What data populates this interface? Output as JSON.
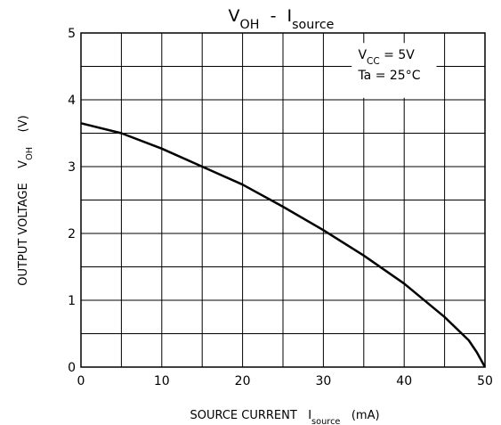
{
  "chart_data": {
    "type": "line",
    "title": [
      {
        "text": "V"
      },
      {
        "text": "OH",
        "sub": true
      },
      {
        "text": "  -  "
      },
      {
        "text": "I"
      },
      {
        "text": "source",
        "sub": true
      }
    ],
    "xlabel": [
      {
        "text": "SOURCE CURRENT   "
      },
      {
        "text": "I"
      },
      {
        "text": "source",
        "sub": true
      },
      {
        "text": "   (mA)"
      }
    ],
    "ylabel": [
      {
        "text": "OUTPUT VOLTAGE    "
      },
      {
        "text": "V"
      },
      {
        "text": "OH",
        "sub": true
      },
      {
        "text": "    (V)"
      }
    ],
    "annotations": [
      [
        {
          "text": "V"
        },
        {
          "text": "CC",
          "sub": true
        },
        {
          "text": " = 5V"
        }
      ],
      [
        {
          "text": "Ta = 25°C"
        }
      ]
    ],
    "x": [
      0,
      5,
      10,
      15,
      20,
      25,
      30,
      35,
      40,
      45,
      48,
      49,
      50
    ],
    "values": [
      3.65,
      3.5,
      3.27,
      3.0,
      2.73,
      2.4,
      2.05,
      1.67,
      1.25,
      0.75,
      0.4,
      0.22,
      0
    ],
    "color": "#000000",
    "xlim": [
      0,
      50
    ],
    "ylim": [
      0,
      5
    ],
    "xticks": [
      0,
      10,
      20,
      30,
      40,
      50
    ],
    "yticks": [
      0,
      1,
      2,
      3,
      4,
      5
    ],
    "xminor": [
      5,
      15,
      25,
      35,
      45
    ],
    "yminor": [
      0.5,
      1.5,
      2.5,
      3.5,
      4.5
    ],
    "grid": true
  }
}
